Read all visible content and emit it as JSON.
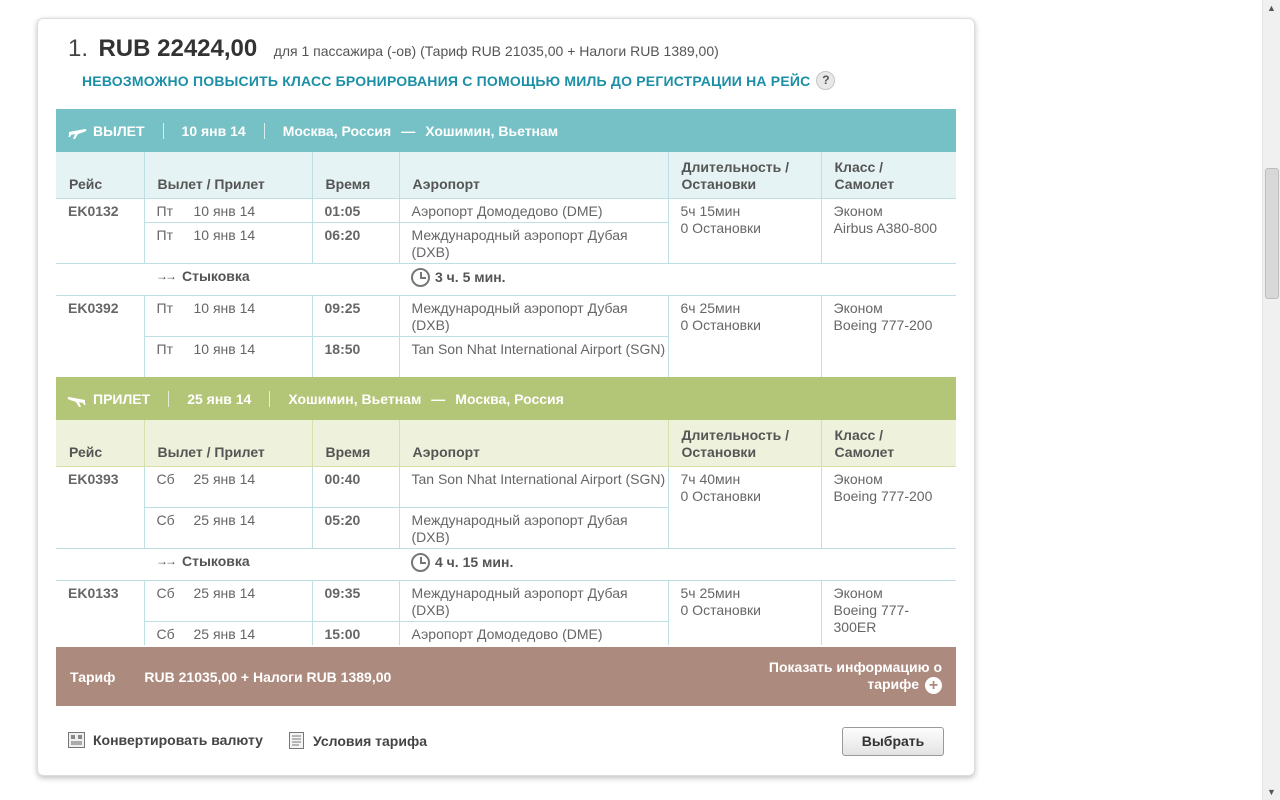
{
  "option": {
    "number": "1.",
    "price": "RUB 22424,00",
    "price_description": "для 1 пассажира (-ов) (Тариф RUB 21035,00 + Налоги RUB 1389,00)",
    "upgrade_notice": "НЕВОЗМОЖНО ПОВЫСИТЬ КЛАСС БРОНИРОВАНИЯ С ПОМОЩЬЮ МИЛЬ ДО РЕГИСТРАЦИИ НА РЕЙС",
    "help_label": "?"
  },
  "columns": {
    "flight": "Рейс",
    "dep_arr": "Вылет / Прилет",
    "time": "Время",
    "airport": "Аэропорт",
    "duration_line1": "Длительность /",
    "duration_line2": "Остановки",
    "class_line1": "Класс /",
    "class_line2": "Самолет"
  },
  "outbound": {
    "label": "ВЫЛЕТ",
    "date": "10 янв 14",
    "from": "Москва, Россия",
    "dash": "—",
    "to": "Хошимин, Вьетнам",
    "segments": [
      {
        "flight": "EK0132",
        "dep": {
          "day": "Пт",
          "date": "10 янв 14",
          "time": "01:05",
          "airport": "Аэропорт Домодедово (DME)"
        },
        "arr": {
          "day": "Пт",
          "date": "10 янв 14",
          "time": "06:20",
          "airport": "Международный аэропорт Дубая (DXB)"
        },
        "duration": "5ч 15мин",
        "stops": "0 Остановки",
        "cabin": "Эконом",
        "aircraft": "Airbus A380-800"
      },
      {
        "flight": "EK0392",
        "dep": {
          "day": "Пт",
          "date": "10 янв 14",
          "time": "09:25",
          "airport": "Международный аэропорт Дубая (DXB)"
        },
        "arr": {
          "day": "Пт",
          "date": "10 янв 14",
          "time": "18:50",
          "airport": "Tan Son Nhat International Airport (SGN)"
        },
        "duration": "6ч 25мин",
        "stops": "0 Остановки",
        "cabin": "Эконом",
        "aircraft": "Boeing 777-200"
      }
    ],
    "connection": {
      "label": "Стыковка",
      "time": "3 ч. 5 мин."
    }
  },
  "inbound": {
    "label": "ПРИЛЕТ",
    "date": "25 янв 14",
    "from": "Хошимин, Вьетнам",
    "dash": "—",
    "to": "Москва, Россия",
    "segments": [
      {
        "flight": "EK0393",
        "dep": {
          "day": "Сб",
          "date": "25 янв 14",
          "time": "00:40",
          "airport": "Tan Son Nhat International Airport (SGN)"
        },
        "arr": {
          "day": "Сб",
          "date": "25 янв 14",
          "time": "05:20",
          "airport": "Международный аэропорт Дубая (DXB)"
        },
        "duration": "7ч 40мин",
        "stops": "0 Остановки",
        "cabin": "Эконом",
        "aircraft": "Boeing 777-200"
      },
      {
        "flight": "EK0133",
        "dep": {
          "day": "Сб",
          "date": "25 янв 14",
          "time": "09:35",
          "airport": "Международный аэропорт Дубая (DXB)"
        },
        "arr": {
          "day": "Сб",
          "date": "25 янв 14",
          "time": "15:00",
          "airport": "Аэропорт Домодедово (DME)"
        },
        "duration": "5ч 25мин",
        "stops": "0 Остановки",
        "cabin": "Эконом",
        "aircraft": "Boeing 777-300ER"
      }
    ],
    "connection": {
      "label": "Стыковка",
      "time": "4 ч. 15 мин."
    }
  },
  "fare": {
    "label": "Тариф",
    "value": "RUB 21035,00 + Налоги RUB 1389,00",
    "info_link": "Показать информацию о тарифе"
  },
  "footer": {
    "convert_currency": "Конвертировать валюту",
    "fare_conditions": "Условия тарифа",
    "select_button": "Выбрать"
  },
  "icons": {
    "outbound_plane": "plane-departure-icon",
    "inbound_plane": "plane-arrival-icon",
    "connection": "connection-arrow-icon",
    "clock": "clock-icon",
    "plus": "plus-circle-icon",
    "currency": "currency-converter-icon",
    "terms": "document-icon"
  },
  "colors": {
    "outbound_band": "#76c1c6",
    "inbound_band": "#b3c576",
    "fare_band": "#ad8a7e",
    "notice_text": "#1b8fa6"
  }
}
